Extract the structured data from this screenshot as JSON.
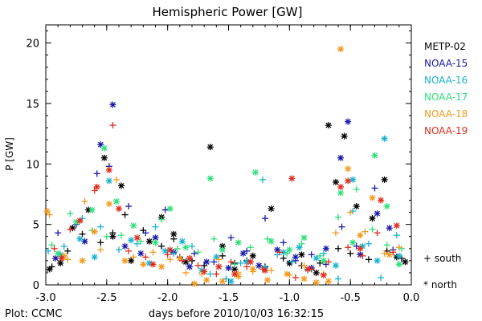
{
  "chart_data": {
    "type": "scatter",
    "title": "Hemispheric Power [GW]",
    "xlabel": "days before 2010/10/03 16:32:15",
    "ylabel": "P [GW]",
    "xlim": [
      -3.0,
      0.0
    ],
    "ylim": [
      0,
      21.5
    ],
    "x_ticks": [
      -3.0,
      -2.5,
      -2.0,
      -1.5,
      -1.0,
      -0.5,
      0.0
    ],
    "x_tick_labels": [
      "-3.0",
      "-2.5",
      "-2.0",
      "-1.5",
      "-1.0",
      "-0.5",
      "0.0"
    ],
    "y_ticks": [
      0,
      5,
      10,
      15,
      20
    ],
    "y_tick_labels": [
      "0",
      "5",
      "10",
      "15",
      "20"
    ],
    "legend_position": "right",
    "marker_legend": [
      {
        "symbol": "+",
        "label": "+ south"
      },
      {
        "symbol": "*",
        "label": "* north"
      }
    ],
    "footer": "Plot: CCMC",
    "series": [
      {
        "name": "METP-02",
        "color": "#000000",
        "south": [
          [
            -2.95,
            1.5
          ],
          [
            -2.82,
            2.8
          ],
          [
            -2.7,
            4.2
          ],
          [
            -2.55,
            3.5
          ],
          [
            -2.45,
            4.3
          ],
          [
            -2.35,
            5.8
          ],
          [
            -2.2,
            4.5
          ],
          [
            -2.05,
            3.2
          ],
          [
            -1.95,
            3.8
          ],
          [
            -1.8,
            2.0
          ],
          [
            -1.7,
            1.6
          ],
          [
            -1.55,
            2.4
          ],
          [
            -1.45,
            1.8
          ],
          [
            -1.35,
            2.0
          ],
          [
            -1.2,
            1.5
          ],
          [
            -1.05,
            2.2
          ],
          [
            -0.9,
            1.6
          ],
          [
            -0.75,
            1.8
          ],
          [
            -0.6,
            3.0
          ],
          [
            -0.5,
            2.6
          ],
          [
            -0.35,
            2.1
          ],
          [
            -0.2,
            2.8
          ],
          [
            -0.08,
            2.2
          ]
        ],
        "north": [
          [
            -2.97,
            1.3
          ],
          [
            -2.88,
            1.8
          ],
          [
            -2.78,
            4.7
          ],
          [
            -2.65,
            6.2
          ],
          [
            -2.52,
            10.5
          ],
          [
            -2.45,
            4.0
          ],
          [
            -2.38,
            8.2
          ],
          [
            -2.3,
            2.0
          ],
          [
            -2.15,
            3.6
          ],
          [
            -2.05,
            5.6
          ],
          [
            -1.95,
            4.2
          ],
          [
            -1.85,
            1.9
          ],
          [
            -1.65,
            11.4
          ],
          [
            -1.55,
            3.2
          ],
          [
            -1.45,
            1.3
          ],
          [
            -1.3,
            2.4
          ],
          [
            -1.15,
            6.3
          ],
          [
            -1.0,
            1.8
          ],
          [
            -0.9,
            2.5
          ],
          [
            -0.78,
            1.0
          ],
          [
            -0.68,
            13.2
          ],
          [
            -0.62,
            8.5
          ],
          [
            -0.55,
            12.3
          ],
          [
            -0.45,
            6.5
          ],
          [
            -0.32,
            5.5
          ],
          [
            -0.22,
            8.7
          ],
          [
            -0.12,
            2.3
          ],
          [
            -0.05,
            1.9
          ]
        ]
      },
      {
        "name": "NOAA-15",
        "color": "#1a1aa8",
        "south": [
          [
            -2.9,
            4.3
          ],
          [
            -2.75,
            5.0
          ],
          [
            -2.58,
            9.2
          ],
          [
            -2.48,
            9.8
          ],
          [
            -2.32,
            6.5
          ],
          [
            -2.18,
            4.3
          ],
          [
            -2.02,
            6.2
          ],
          [
            -1.9,
            2.3
          ],
          [
            -1.78,
            2.6
          ],
          [
            -1.62,
            1.9
          ],
          [
            -1.48,
            3.9
          ],
          [
            -1.35,
            2.8
          ],
          [
            -1.2,
            5.5
          ],
          [
            -1.05,
            3.5
          ],
          [
            -0.95,
            2.0
          ],
          [
            -0.82,
            2.5
          ],
          [
            -0.7,
            1.7
          ],
          [
            -0.57,
            4.8
          ],
          [
            -0.45,
            3.2
          ],
          [
            -0.3,
            8.0
          ],
          [
            -0.15,
            2.9
          ]
        ],
        "north": [
          [
            -2.92,
            2.2
          ],
          [
            -2.68,
            3.6
          ],
          [
            -2.55,
            11.6
          ],
          [
            -2.45,
            14.9
          ],
          [
            -2.35,
            3.2
          ],
          [
            -2.22,
            2.6
          ],
          [
            -2.1,
            3.9
          ],
          [
            -1.95,
            2.7
          ],
          [
            -1.82,
            1.5
          ],
          [
            -1.68,
            1.9
          ],
          [
            -1.5,
            1.4
          ],
          [
            -1.38,
            2.6
          ],
          [
            -1.25,
            1.6
          ],
          [
            -1.1,
            2.9
          ],
          [
            -0.95,
            2.3
          ],
          [
            -0.82,
            1.4
          ],
          [
            -0.7,
            3.0
          ],
          [
            -0.52,
            13.5
          ],
          [
            -0.58,
            10.5
          ],
          [
            -0.42,
            2.5
          ],
          [
            -0.28,
            5.9
          ],
          [
            -0.18,
            4.7
          ]
        ]
      },
      {
        "name": "NOAA-16",
        "color": "#19b3d1",
        "south": [
          [
            -2.98,
            2.8
          ],
          [
            -2.85,
            3.2
          ],
          [
            -2.7,
            5.5
          ],
          [
            -2.55,
            4.8
          ],
          [
            -2.4,
            2.9
          ],
          [
            -2.25,
            3.4
          ],
          [
            -2.1,
            4.8
          ],
          [
            -1.95,
            2.6
          ],
          [
            -1.8,
            3.2
          ],
          [
            -1.65,
            0.9
          ],
          [
            -1.52,
            0.5
          ],
          [
            -1.4,
            1.8
          ],
          [
            -1.22,
            8.7
          ],
          [
            -1.1,
            2.5
          ],
          [
            -0.98,
            1.9
          ],
          [
            -0.85,
            1.2
          ],
          [
            -0.72,
            2.6
          ],
          [
            -0.6,
            0.5
          ],
          [
            -0.48,
            6.1
          ],
          [
            -0.35,
            3.4
          ],
          [
            -0.25,
            0.6
          ],
          [
            -0.12,
            4.1
          ]
        ],
        "north": [
          [
            -2.88,
            2.5
          ],
          [
            -2.72,
            3.8
          ],
          [
            -2.6,
            2.3
          ],
          [
            -2.48,
            8.6
          ],
          [
            -2.3,
            3.7
          ],
          [
            -2.15,
            1.8
          ],
          [
            -2.02,
            2.8
          ],
          [
            -1.88,
            3.6
          ],
          [
            -1.72,
            1.2
          ],
          [
            -1.6,
            2.3
          ],
          [
            -1.48,
            0.3
          ],
          [
            -1.35,
            1.9
          ],
          [
            -1.2,
            1.4
          ],
          [
            -1.05,
            2.7
          ],
          [
            -0.92,
            3.1
          ],
          [
            -0.78,
            2.2
          ],
          [
            -0.62,
            1.6
          ],
          [
            -0.48,
            8.7
          ],
          [
            -0.4,
            3.2
          ],
          [
            -0.28,
            2.0
          ],
          [
            -0.22,
            12.1
          ],
          [
            -0.1,
            2.4
          ]
        ]
      },
      {
        "name": "NOAA-17",
        "color": "#2ee07a",
        "south": [
          [
            -2.95,
            3.3
          ],
          [
            -2.8,
            5.9
          ],
          [
            -2.62,
            4.5
          ],
          [
            -2.5,
            4.0
          ],
          [
            -2.38,
            4.1
          ],
          [
            -2.22,
            3.6
          ],
          [
            -2.05,
            5.4
          ],
          [
            -1.92,
            3.0
          ],
          [
            -1.75,
            2.7
          ],
          [
            -1.62,
            3.8
          ],
          [
            -1.45,
            1.7
          ],
          [
            -1.32,
            3.1
          ],
          [
            -1.18,
            3.8
          ],
          [
            -1.02,
            2.6
          ],
          [
            -0.9,
            3.4
          ],
          [
            -0.75,
            2.4
          ],
          [
            -0.6,
            5.6
          ],
          [
            -0.45,
            7.9
          ],
          [
            -0.32,
            4.6
          ],
          [
            -0.2,
            3.3
          ],
          [
            -0.08,
            3.0
          ]
        ],
        "north": [
          [
            -2.9,
            2.6
          ],
          [
            -2.75,
            5.2
          ],
          [
            -2.62,
            6.2
          ],
          [
            -2.52,
            11.3
          ],
          [
            -2.42,
            6.9
          ],
          [
            -2.28,
            4.9
          ],
          [
            -2.1,
            3.5
          ],
          [
            -1.98,
            6.3
          ],
          [
            -1.85,
            3.1
          ],
          [
            -1.65,
            8.8
          ],
          [
            -1.55,
            2.9
          ],
          [
            -1.42,
            3.5
          ],
          [
            -1.28,
            9.3
          ],
          [
            -1.15,
            3.6
          ],
          [
            -1.0,
            2.9
          ],
          [
            -0.88,
            3.9
          ],
          [
            -0.72,
            2.0
          ],
          [
            -0.58,
            7.6
          ],
          [
            -0.48,
            3.5
          ],
          [
            -0.3,
            10.7
          ],
          [
            -0.2,
            6.5
          ],
          [
            -0.1,
            1.7
          ]
        ]
      },
      {
        "name": "NOAA-18",
        "color": "#f29a1f",
        "south": [
          [
            -2.97,
            5.8
          ],
          [
            -2.82,
            2.1
          ],
          [
            -2.68,
            6.9
          ],
          [
            -2.55,
            2.9
          ],
          [
            -2.42,
            8.7
          ],
          [
            -2.28,
            2.3
          ],
          [
            -2.12,
            2.7
          ],
          [
            -1.98,
            2.1
          ],
          [
            -1.85,
            1.0
          ],
          [
            -1.72,
            0.9
          ],
          [
            -1.58,
            2.1
          ],
          [
            -1.42,
            1.0
          ],
          [
            -1.3,
            1.1
          ],
          [
            -1.15,
            1.2
          ],
          [
            -1.0,
            0.8
          ],
          [
            -0.88,
            1.6
          ],
          [
            -0.72,
            0.9
          ],
          [
            -0.62,
            4.3
          ],
          [
            -0.5,
            6.0
          ],
          [
            -0.38,
            4.4
          ],
          [
            -0.22,
            2.6
          ],
          [
            -0.1,
            3.1
          ]
        ],
        "north": [
          [
            -2.99,
            6.1
          ],
          [
            -2.85,
            2.4
          ],
          [
            -2.7,
            2.0
          ],
          [
            -2.6,
            4.4
          ],
          [
            -2.48,
            6.7
          ],
          [
            -2.35,
            2.0
          ],
          [
            -2.2,
            1.7
          ],
          [
            -2.05,
            1.5
          ],
          [
            -1.9,
            2.2
          ],
          [
            -1.78,
            0.1
          ],
          [
            -1.68,
            0.4
          ],
          [
            -1.55,
            0.3
          ],
          [
            -1.42,
            0.7
          ],
          [
            -1.3,
            1.3
          ],
          [
            -1.18,
            0.4
          ],
          [
            -1.02,
            0.9
          ],
          [
            -0.88,
            0.5
          ],
          [
            -0.78,
            0.2
          ],
          [
            -0.68,
            0.3
          ],
          [
            -0.58,
            19.5
          ],
          [
            -0.52,
            9.6
          ],
          [
            -0.42,
            4.1
          ],
          [
            -0.32,
            7.2
          ],
          [
            -0.18,
            2.5
          ]
        ]
      },
      {
        "name": "NOAA-19",
        "color": "#e02b1c",
        "south": [
          [
            -2.93,
            3.0
          ],
          [
            -2.8,
            4.6
          ],
          [
            -2.6,
            7.8
          ],
          [
            -2.45,
            13.2
          ],
          [
            -2.32,
            2.8
          ],
          [
            -2.18,
            2.3
          ],
          [
            -2.0,
            2.5
          ],
          [
            -1.88,
            2.0
          ],
          [
            -1.75,
            1.6
          ],
          [
            -1.6,
            0.9
          ],
          [
            -1.48,
            1.9
          ],
          [
            -1.35,
            1.5
          ],
          [
            -1.22,
            1.3
          ],
          [
            -1.08,
            2.7
          ],
          [
            -0.95,
            0.6
          ],
          [
            -0.82,
            1.3
          ],
          [
            -0.68,
            1.9
          ],
          [
            -0.52,
            3.1
          ],
          [
            -0.4,
            2.4
          ],
          [
            -0.28,
            4.3
          ],
          [
            -0.15,
            2.7
          ]
        ],
        "north": [
          [
            -2.87,
            2.2
          ],
          [
            -2.72,
            5.3
          ],
          [
            -2.58,
            8.1
          ],
          [
            -2.48,
            9.5
          ],
          [
            -2.4,
            6.3
          ],
          [
            -2.25,
            3.9
          ],
          [
            -2.12,
            1.7
          ],
          [
            -1.98,
            2.9
          ],
          [
            -1.82,
            2.2
          ],
          [
            -1.7,
            1.1
          ],
          [
            -1.58,
            1.5
          ],
          [
            -1.45,
            0.9
          ],
          [
            -1.32,
            1.9
          ],
          [
            -1.2,
            1.2
          ],
          [
            -0.98,
            8.8
          ],
          [
            -0.85,
            1.3
          ],
          [
            -0.72,
            0.8
          ],
          [
            -0.58,
            8.1
          ],
          [
            -0.52,
            8.6
          ],
          [
            -0.42,
            3.0
          ],
          [
            -0.25,
            7.0
          ],
          [
            -0.12,
            4.9
          ]
        ]
      }
    ]
  }
}
